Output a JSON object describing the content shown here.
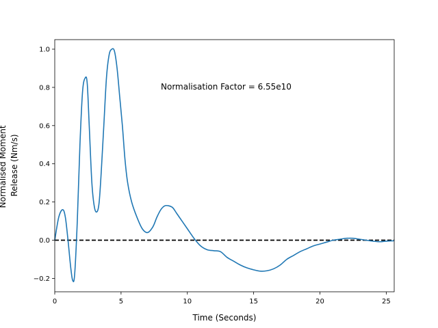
{
  "chart_data": {
    "type": "line",
    "xlabel": "Time (Seconds)",
    "ylabel_lines": [
      "Normalised Moment",
      "Release (Nm/s)"
    ],
    "annotation": {
      "text": "Normalisation Factor = 6.55e10",
      "x": 8.0,
      "y": 0.8
    },
    "xlim": [
      0,
      25.6
    ],
    "ylim": [
      -0.27,
      1.05
    ],
    "xticks": [
      0,
      5,
      10,
      15,
      20,
      25
    ],
    "xtick_labels": [
      "0",
      "5",
      "10",
      "15",
      "20",
      "25"
    ],
    "yticks": [
      -0.2,
      0.0,
      0.2,
      0.4,
      0.6,
      0.8,
      1.0
    ],
    "ytick_labels": [
      "−0.2",
      "0.0",
      "0.2",
      "0.4",
      "0.6",
      "0.8",
      "1.0"
    ],
    "grid": false,
    "series": [
      {
        "color": "#1f77b4",
        "x": [
          0,
          0.3,
          0.6,
          0.8,
          1.0,
          1.2,
          1.35,
          1.5,
          1.7,
          1.9,
          2.1,
          2.3,
          2.45,
          2.6,
          2.8,
          3.0,
          3.2,
          3.35,
          3.5,
          3.7,
          3.9,
          4.1,
          4.3,
          4.5,
          4.7,
          4.9,
          5.1,
          5.3,
          5.5,
          5.8,
          6.2,
          6.6,
          7.0,
          7.4,
          7.7,
          8.0,
          8.3,
          8.6,
          8.9,
          9.2,
          9.6,
          10.0,
          10.5,
          11.0,
          11.5,
          12.0,
          12.5,
          13.0,
          13.5,
          14.0,
          14.5,
          15.0,
          15.5,
          16.0,
          16.5,
          17.0,
          17.5,
          18.0,
          18.5,
          19.0,
          19.5,
          20.0,
          20.5,
          21.0,
          21.5,
          22.0,
          22.5,
          23.0,
          23.5,
          24.0,
          24.5,
          25.0,
          25.6
        ],
        "y": [
          0.0,
          0.12,
          0.16,
          0.12,
          0.0,
          -0.14,
          -0.21,
          -0.18,
          0.1,
          0.5,
          0.78,
          0.85,
          0.82,
          0.6,
          0.3,
          0.17,
          0.15,
          0.2,
          0.35,
          0.6,
          0.85,
          0.97,
          1.0,
          0.99,
          0.9,
          0.75,
          0.6,
          0.42,
          0.3,
          0.2,
          0.12,
          0.06,
          0.04,
          0.07,
          0.12,
          0.16,
          0.18,
          0.18,
          0.17,
          0.14,
          0.1,
          0.06,
          0.01,
          -0.03,
          -0.05,
          -0.055,
          -0.06,
          -0.09,
          -0.11,
          -0.13,
          -0.145,
          -0.155,
          -0.162,
          -0.16,
          -0.15,
          -0.13,
          -0.1,
          -0.08,
          -0.06,
          -0.045,
          -0.03,
          -0.02,
          -0.01,
          0.0,
          0.005,
          0.01,
          0.01,
          0.005,
          0.0,
          -0.005,
          -0.008,
          -0.005,
          -0.003
        ]
      }
    ],
    "reference_line": {
      "y": 0.0,
      "style": "dashed",
      "color": "#000000"
    }
  }
}
